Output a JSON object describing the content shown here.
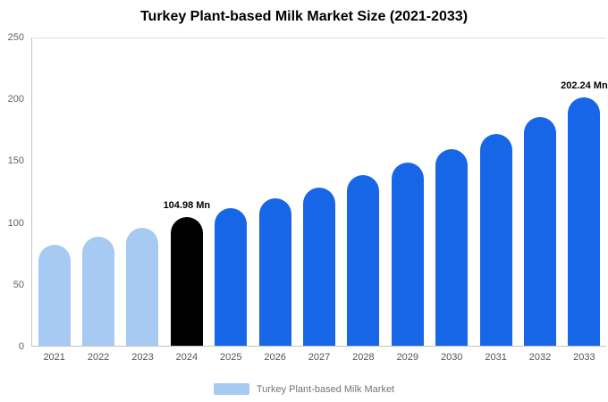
{
  "title": "Turkey Plant-based Milk Market Size (2021-2033)",
  "colors": {
    "light": "#A6CAF2",
    "primary": "#1766E8",
    "highlight": "#000000"
  },
  "legend": {
    "label": "Turkey Plant-based Milk Market"
  },
  "chart_data": {
    "type": "bar",
    "title": "Turkey Plant-based Milk Market Size (2021-2033)",
    "xlabel": "",
    "ylabel": "",
    "ylim": [
      0,
      250
    ],
    "yticks": [
      0,
      50,
      100,
      150,
      200,
      250
    ],
    "grid": "top line only",
    "legend_position": "bottom",
    "categories": [
      "2021",
      "2022",
      "2023",
      "2024",
      "2025",
      "2026",
      "2027",
      "2028",
      "2029",
      "2030",
      "2031",
      "2032",
      "2033"
    ],
    "values": [
      82,
      89,
      96,
      104.98,
      112,
      120,
      129,
      139,
      149,
      160,
      172,
      186,
      202.24
    ],
    "unit": "Mn",
    "bar_colors": [
      "light",
      "light",
      "light",
      "highlight",
      "primary",
      "primary",
      "primary",
      "primary",
      "primary",
      "primary",
      "primary",
      "primary",
      "primary"
    ],
    "data_labels": [
      null,
      null,
      null,
      "104.98 Mn",
      null,
      null,
      null,
      null,
      null,
      null,
      null,
      null,
      "202.24 Mn"
    ]
  }
}
